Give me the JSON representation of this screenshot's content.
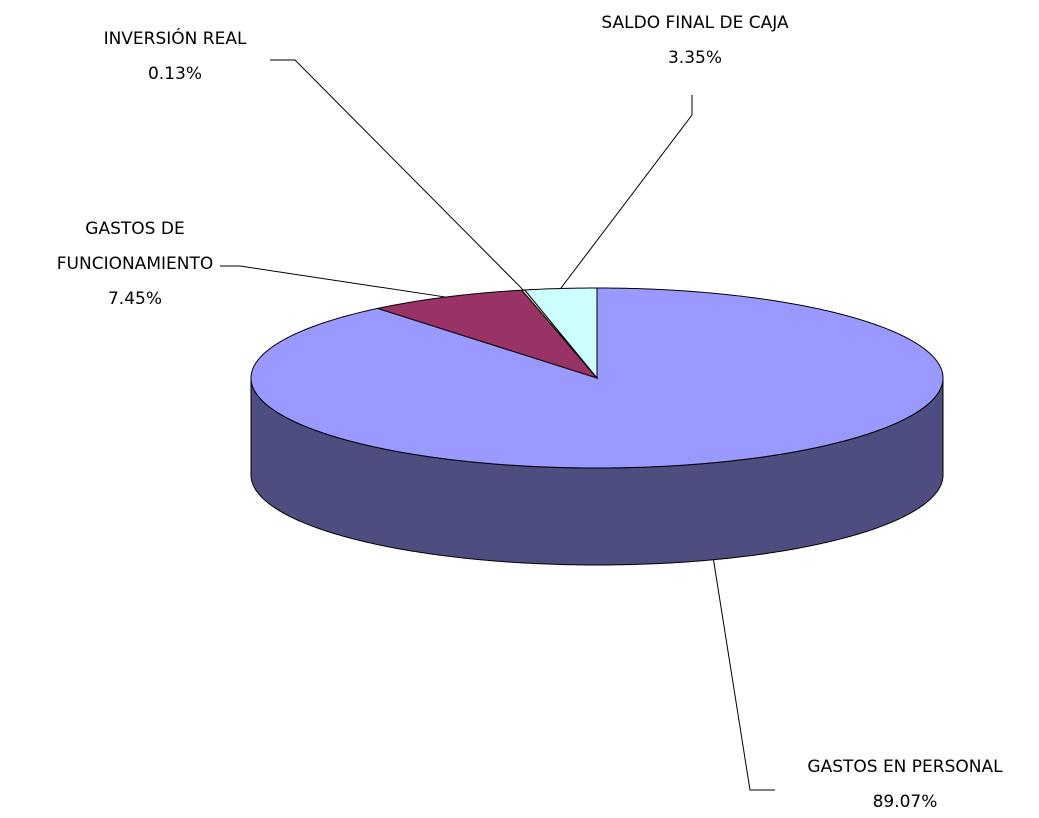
{
  "chart_data": {
    "type": "pie",
    "categories": [
      "GASTOS EN PERSONAL",
      "GASTOS DE FUNCIONAMIENTO",
      "INVERSIÓN REAL",
      "SALDO FINAL DE CAJA"
    ],
    "values": [
      89.07,
      7.45,
      0.13,
      3.35
    ],
    "value_labels": [
      "89.07%",
      "7.45%",
      "0.13%",
      "3.35%"
    ],
    "colors": [
      "#9999ff",
      "#993366",
      "#ffffcc",
      "#ccffff"
    ]
  }
}
